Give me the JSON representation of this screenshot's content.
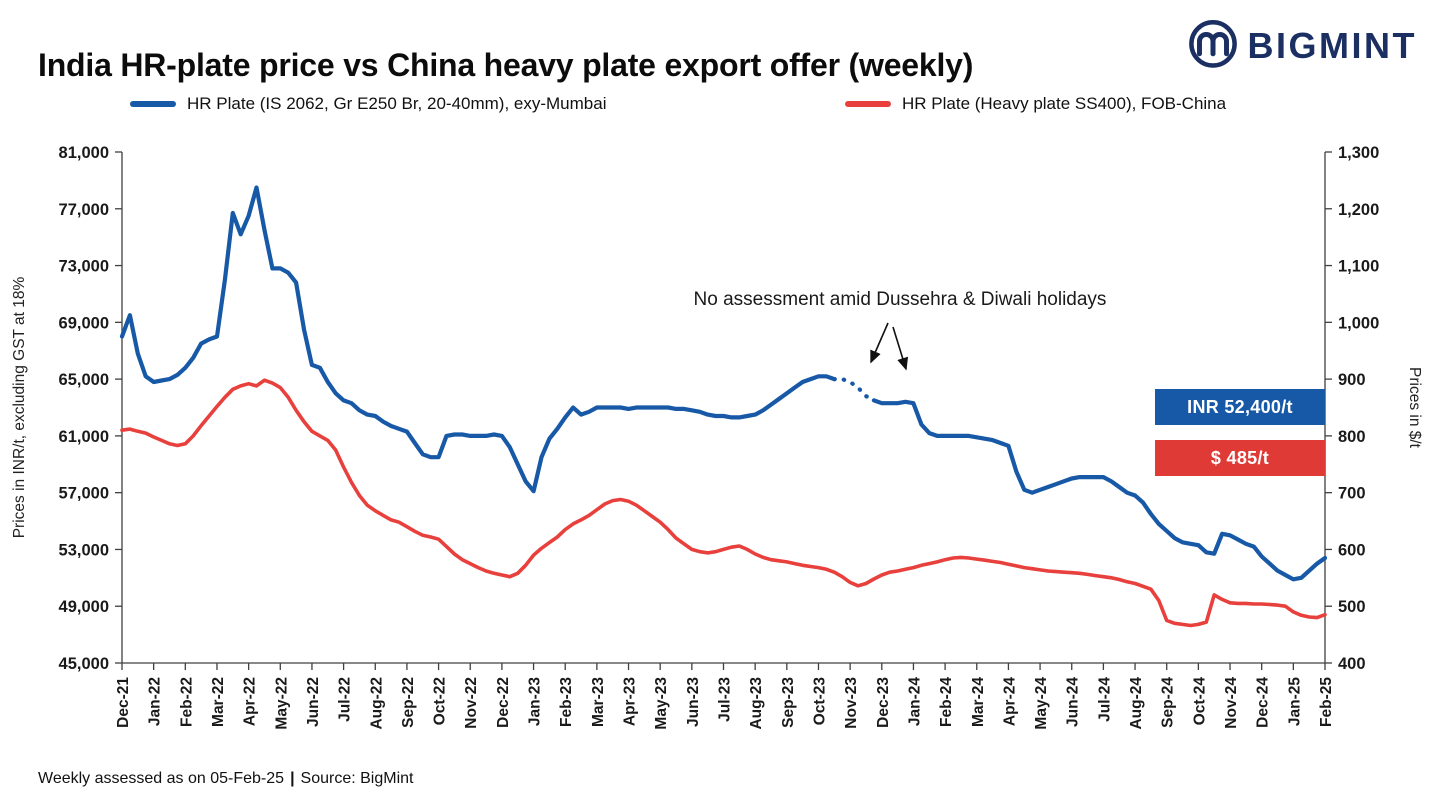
{
  "header": {
    "title": "India HR-plate price vs China heavy plate export offer (weekly)",
    "brand": "BIGMINT"
  },
  "legend": [
    {
      "label": "HR Plate (IS 2062, Gr E250 Br, 20-40mm), exy-Mumbai",
      "color": "#1759A6"
    },
    {
      "label": "HR Plate (Heavy plate SS400), FOB-China",
      "color": "#E8403C"
    }
  ],
  "chart_data": {
    "type": "line",
    "title": "India HR-plate price vs China heavy plate export offer (weekly)",
    "x_tick_labels": [
      "Dec-21",
      "Jan-22",
      "Feb-22",
      "Mar-22",
      "Apr-22",
      "May-22",
      "Jun-22",
      "Jul-22",
      "Aug-22",
      "Sep-22",
      "Oct-22",
      "Nov-22",
      "Dec-22",
      "Jan-23",
      "Feb-23",
      "Mar-23",
      "Apr-23",
      "May-23",
      "Jun-23",
      "Jul-23",
      "Aug-23",
      "Sep-23",
      "Oct-23",
      "Nov-23",
      "Dec-23",
      "Jan-24",
      "Feb-24",
      "Mar-24",
      "Apr-24",
      "May-24",
      "Jun-24",
      "Jul-24",
      "Aug-24",
      "Sep-24",
      "Oct-24",
      "Nov-24",
      "Dec-24",
      "Jan-25",
      "Feb-25"
    ],
    "points_per_month": 4,
    "left_axis": {
      "label": "Prices in INR/t, excluding GST at 18%",
      "min": 45000,
      "max": 81000,
      "step": 4000
    },
    "right_axis": {
      "label": "Prices in $/t",
      "min": 400,
      "max": 1300,
      "step": 100
    },
    "grid": false,
    "legend_position": "top",
    "series": [
      {
        "name": "HR Plate (IS 2062, Gr E250 Br, 20-40mm), exy-Mumbai",
        "axis": "left",
        "color": "#1759A6",
        "dash_range": [
          90,
          95
        ],
        "values": [
          68000,
          69500,
          66800,
          65200,
          64800,
          64900,
          65000,
          65300,
          65800,
          66500,
          67500,
          67800,
          68000,
          72000,
          76700,
          75200,
          76500,
          78500,
          75500,
          72800,
          72800,
          72500,
          71800,
          68500,
          66000,
          65800,
          64800,
          64000,
          63500,
          63300,
          62800,
          62500,
          62400,
          62000,
          61700,
          61500,
          61300,
          60500,
          59700,
          59500,
          59500,
          61000,
          61100,
          61100,
          61000,
          61000,
          61000,
          61100,
          61000,
          60200,
          59000,
          57800,
          57100,
          59500,
          60800,
          61500,
          62300,
          63000,
          62500,
          62700,
          63000,
          63000,
          63000,
          63000,
          62900,
          63000,
          63000,
          63000,
          63000,
          63000,
          62900,
          62900,
          62800,
          62700,
          62500,
          62400,
          62400,
          62300,
          62300,
          62400,
          62500,
          62800,
          63200,
          63600,
          64000,
          64400,
          64800,
          65000,
          65200,
          65200,
          65000,
          65000,
          64800,
          64400,
          63800,
          63500,
          63300,
          63300,
          63300,
          63400,
          63300,
          61800,
          61200,
          61000,
          61000,
          61000,
          61000,
          61000,
          60900,
          60800,
          60700,
          60500,
          60300,
          58500,
          57200,
          57000,
          57200,
          57400,
          57600,
          57800,
          58000,
          58100,
          58100,
          58100,
          58100,
          57800,
          57400,
          57000,
          56800,
          56300,
          55500,
          54800,
          54300,
          53800,
          53500,
          53400,
          53300,
          52800,
          52700,
          54100,
          54000,
          53700,
          53400,
          53200,
          52500,
          52000,
          51500,
          51200,
          50900,
          51000,
          51500,
          52000,
          52400
        ]
      },
      {
        "name": "HR Plate (Heavy plate SS400), FOB-China",
        "axis": "right",
        "color": "#E8403C",
        "values": [
          810,
          812,
          808,
          805,
          798,
          792,
          786,
          783,
          786,
          800,
          818,
          835,
          852,
          868,
          882,
          888,
          892,
          888,
          898,
          893,
          885,
          868,
          845,
          825,
          808,
          800,
          792,
          775,
          745,
          718,
          695,
          678,
          668,
          660,
          652,
          648,
          640,
          632,
          625,
          622,
          618,
          605,
          592,
          582,
          575,
          568,
          562,
          558,
          555,
          552,
          558,
          572,
          590,
          602,
          612,
          622,
          635,
          645,
          652,
          660,
          670,
          680,
          686,
          688,
          685,
          678,
          668,
          658,
          648,
          635,
          620,
          610,
          600,
          596,
          594,
          596,
          600,
          604,
          606,
          600,
          592,
          586,
          582,
          580,
          578,
          575,
          572,
          570,
          568,
          565,
          560,
          552,
          542,
          536,
          540,
          548,
          555,
          560,
          562,
          565,
          568,
          572,
          575,
          578,
          582,
          585,
          586,
          585,
          583,
          581,
          579,
          577,
          574,
          571,
          568,
          566,
          564,
          562,
          561,
          560,
          559,
          558,
          556,
          554,
          552,
          550,
          547,
          543,
          540,
          535,
          530,
          510,
          475,
          470,
          468,
          466,
          468,
          472,
          520,
          512,
          506,
          505,
          505,
          504,
          504,
          503,
          502,
          500,
          490,
          484,
          481,
          480,
          485
        ]
      }
    ],
    "annotation": {
      "text": "No assessment amid Dussehra & Diwali holidays"
    },
    "value_labels": [
      {
        "text": "INR 52,400/t",
        "color": "#1759A6"
      },
      {
        "text": "$ 485/t",
        "color": "#E03A36"
      }
    ]
  },
  "footer": {
    "left": "Weekly assessed as on 05-Feb-25",
    "separator": "|",
    "right": "Source: BigMint"
  }
}
